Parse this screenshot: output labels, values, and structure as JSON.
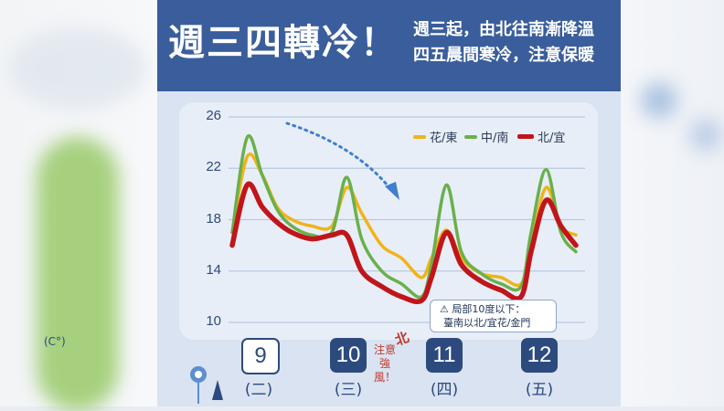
{
  "header": {
    "title": "週三四轉冷！",
    "subtitle_line1": "週三起，由北往南漸降溫",
    "subtitle_line2": "四五晨間寒冷，注意保暖"
  },
  "colors": {
    "header_bg": "#3a5e9c",
    "hualien_taitung": "#f0b419",
    "central_south": "#6ab04c",
    "north_yilan": "#c0151b",
    "arrow": "#3d7fd1"
  },
  "legend": [
    {
      "label": "花/東",
      "color": "#f0b419"
    },
    {
      "label": "中/南",
      "color": "#6ab04c"
    },
    {
      "label": "北/宜",
      "color": "#c0151b"
    }
  ],
  "axis": {
    "y_ticks": [
      "26",
      "22",
      "18",
      "14",
      "10"
    ],
    "unit": "(C°)"
  },
  "days": [
    {
      "date": "9",
      "weekday": "(二)",
      "style": "outline"
    },
    {
      "date": "10",
      "weekday": "(三)",
      "style": "filled"
    },
    {
      "date": "11",
      "weekday": "(四)",
      "style": "filled"
    },
    {
      "date": "12",
      "weekday": "(五)",
      "style": "filled"
    }
  ],
  "wind_note": {
    "mark": "北",
    "text_line1": "注意",
    "text_line2": "強風！"
  },
  "alert_note": {
    "icon": "warning-icon",
    "line1": "局部10度以下：",
    "line2": "臺南以北/宜花/金門"
  },
  "chart_data": {
    "type": "line",
    "title": "",
    "xlabel": "",
    "ylabel": "(C°)",
    "ylim": [
      10,
      26
    ],
    "y_ticks": [
      10,
      14,
      18,
      22,
      26
    ],
    "categories": [
      "9 (二)",
      "10 (三)",
      "11 (四)",
      "12 (五)"
    ],
    "x": [
      9.0,
      9.15,
      9.3,
      9.45,
      9.6,
      9.8,
      10.0,
      10.15,
      10.3,
      10.5,
      10.7,
      10.9,
      11.0,
      11.15,
      11.3,
      11.5,
      11.7,
      11.9,
      12.0,
      12.15,
      12.3,
      12.45
    ],
    "series": [
      {
        "name": "花/東",
        "color": "#f0b419",
        "values": [
          17.0,
          22.9,
          21.5,
          19.0,
          18.0,
          17.5,
          17.5,
          20.5,
          18.5,
          16.0,
          15.0,
          13.5,
          15.0,
          17.2,
          15.0,
          13.8,
          13.5,
          13.0,
          16.0,
          20.5,
          17.5,
          16.8
        ]
      },
      {
        "name": "中/南",
        "color": "#6ab04c",
        "values": [
          17.0,
          24.4,
          21.5,
          18.8,
          17.5,
          16.8,
          17.0,
          21.3,
          16.5,
          14.0,
          13.0,
          12.0,
          14.5,
          20.7,
          15.5,
          13.8,
          13.0,
          12.8,
          17.0,
          21.9,
          17.0,
          15.5
        ]
      },
      {
        "name": "北/宜",
        "color": "#c0151b",
        "values": [
          16.0,
          20.7,
          19.0,
          17.8,
          17.0,
          16.5,
          16.8,
          16.8,
          14.0,
          12.8,
          12.0,
          11.7,
          13.5,
          17.0,
          14.5,
          13.2,
          12.5,
          12.0,
          15.5,
          19.5,
          17.5,
          16.0
        ]
      }
    ]
  }
}
